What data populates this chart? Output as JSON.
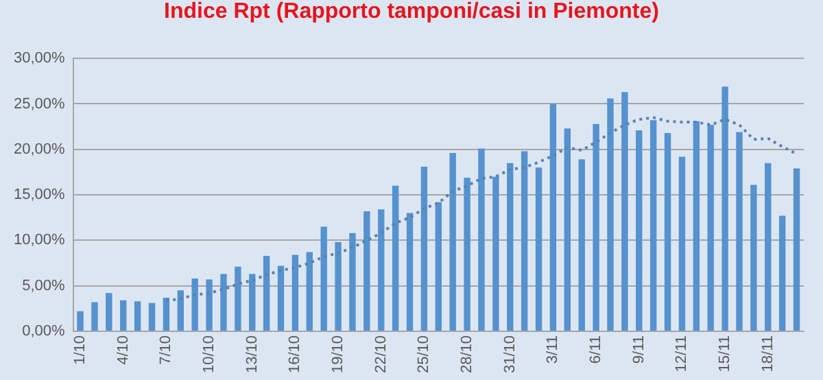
{
  "chart_data": {
    "type": "bar",
    "title": "Indice Rpt (Rapporto tamponi/casi in Piemonte)",
    "categories": [
      "1/10",
      null,
      null,
      "4/10",
      null,
      null,
      "7/10",
      null,
      null,
      "10/10",
      null,
      null,
      "13/10",
      null,
      null,
      "16/10",
      null,
      null,
      "19/10",
      null,
      null,
      "22/10",
      null,
      null,
      "25/10",
      null,
      null,
      "28/10",
      null,
      null,
      "31/10",
      null,
      null,
      "3/11",
      null,
      null,
      "6/11",
      null,
      null,
      "9/11",
      null,
      null,
      "12/11",
      null,
      null,
      "15/11",
      null,
      null,
      "18/11",
      null,
      null
    ],
    "series": [
      {
        "color": "#5592cf",
        "values": [
          2.2,
          3.2,
          4.2,
          3.4,
          3.3,
          3.1,
          3.7,
          4.5,
          5.8,
          5.7,
          6.3,
          7.1,
          6.3,
          8.3,
          7.2,
          8.4,
          8.7,
          11.5,
          9.8,
          10.8,
          13.2,
          13.4,
          16.0,
          13.0,
          18.1,
          14.2,
          19.6,
          16.9,
          20.1,
          17.0,
          18.5,
          19.8,
          18.0,
          25.0,
          22.3,
          18.9,
          22.8,
          25.6,
          26.3,
          22.1,
          23.2,
          21.8,
          19.2,
          23.1,
          22.7,
          26.9,
          21.9,
          16.1,
          18.5,
          12.7,
          17.9
        ]
      },
      {
        "type": "line",
        "color": "#5b82ad",
        "line_style": "dotted",
        "marker": "none",
        "values": [
          null,
          null,
          null,
          null,
          null,
          null,
          3.3,
          3.6,
          4.0,
          4.2,
          4.6,
          5.2,
          5.6,
          6.2,
          6.7,
          7.0,
          7.5,
          8.2,
          8.6,
          9.2,
          10.0,
          10.8,
          11.9,
          12.5,
          13.5,
          14.1,
          15.4,
          16.0,
          16.8,
          17.0,
          17.8,
          18.0,
          18.6,
          19.3,
          20.2,
          19.9,
          20.8,
          21.8,
          22.7,
          23.3,
          23.5,
          23.1,
          23.0,
          23.0,
          22.7,
          23.3,
          22.7,
          21.1,
          21.2,
          20.3,
          19.5
        ]
      }
    ],
    "ylim": [
      0,
      30
    ],
    "yticks": [
      {
        "value": 0,
        "label": "0,00%"
      },
      {
        "value": 5,
        "label": "5,00%"
      },
      {
        "value": 10,
        "label": "10,00%"
      },
      {
        "value": 15,
        "label": "15,00%"
      },
      {
        "value": 20,
        "label": "20,00%"
      },
      {
        "value": 25,
        "label": "25,00%"
      },
      {
        "value": 30,
        "label": "30,00%"
      }
    ],
    "grid": "y",
    "legend": false
  }
}
